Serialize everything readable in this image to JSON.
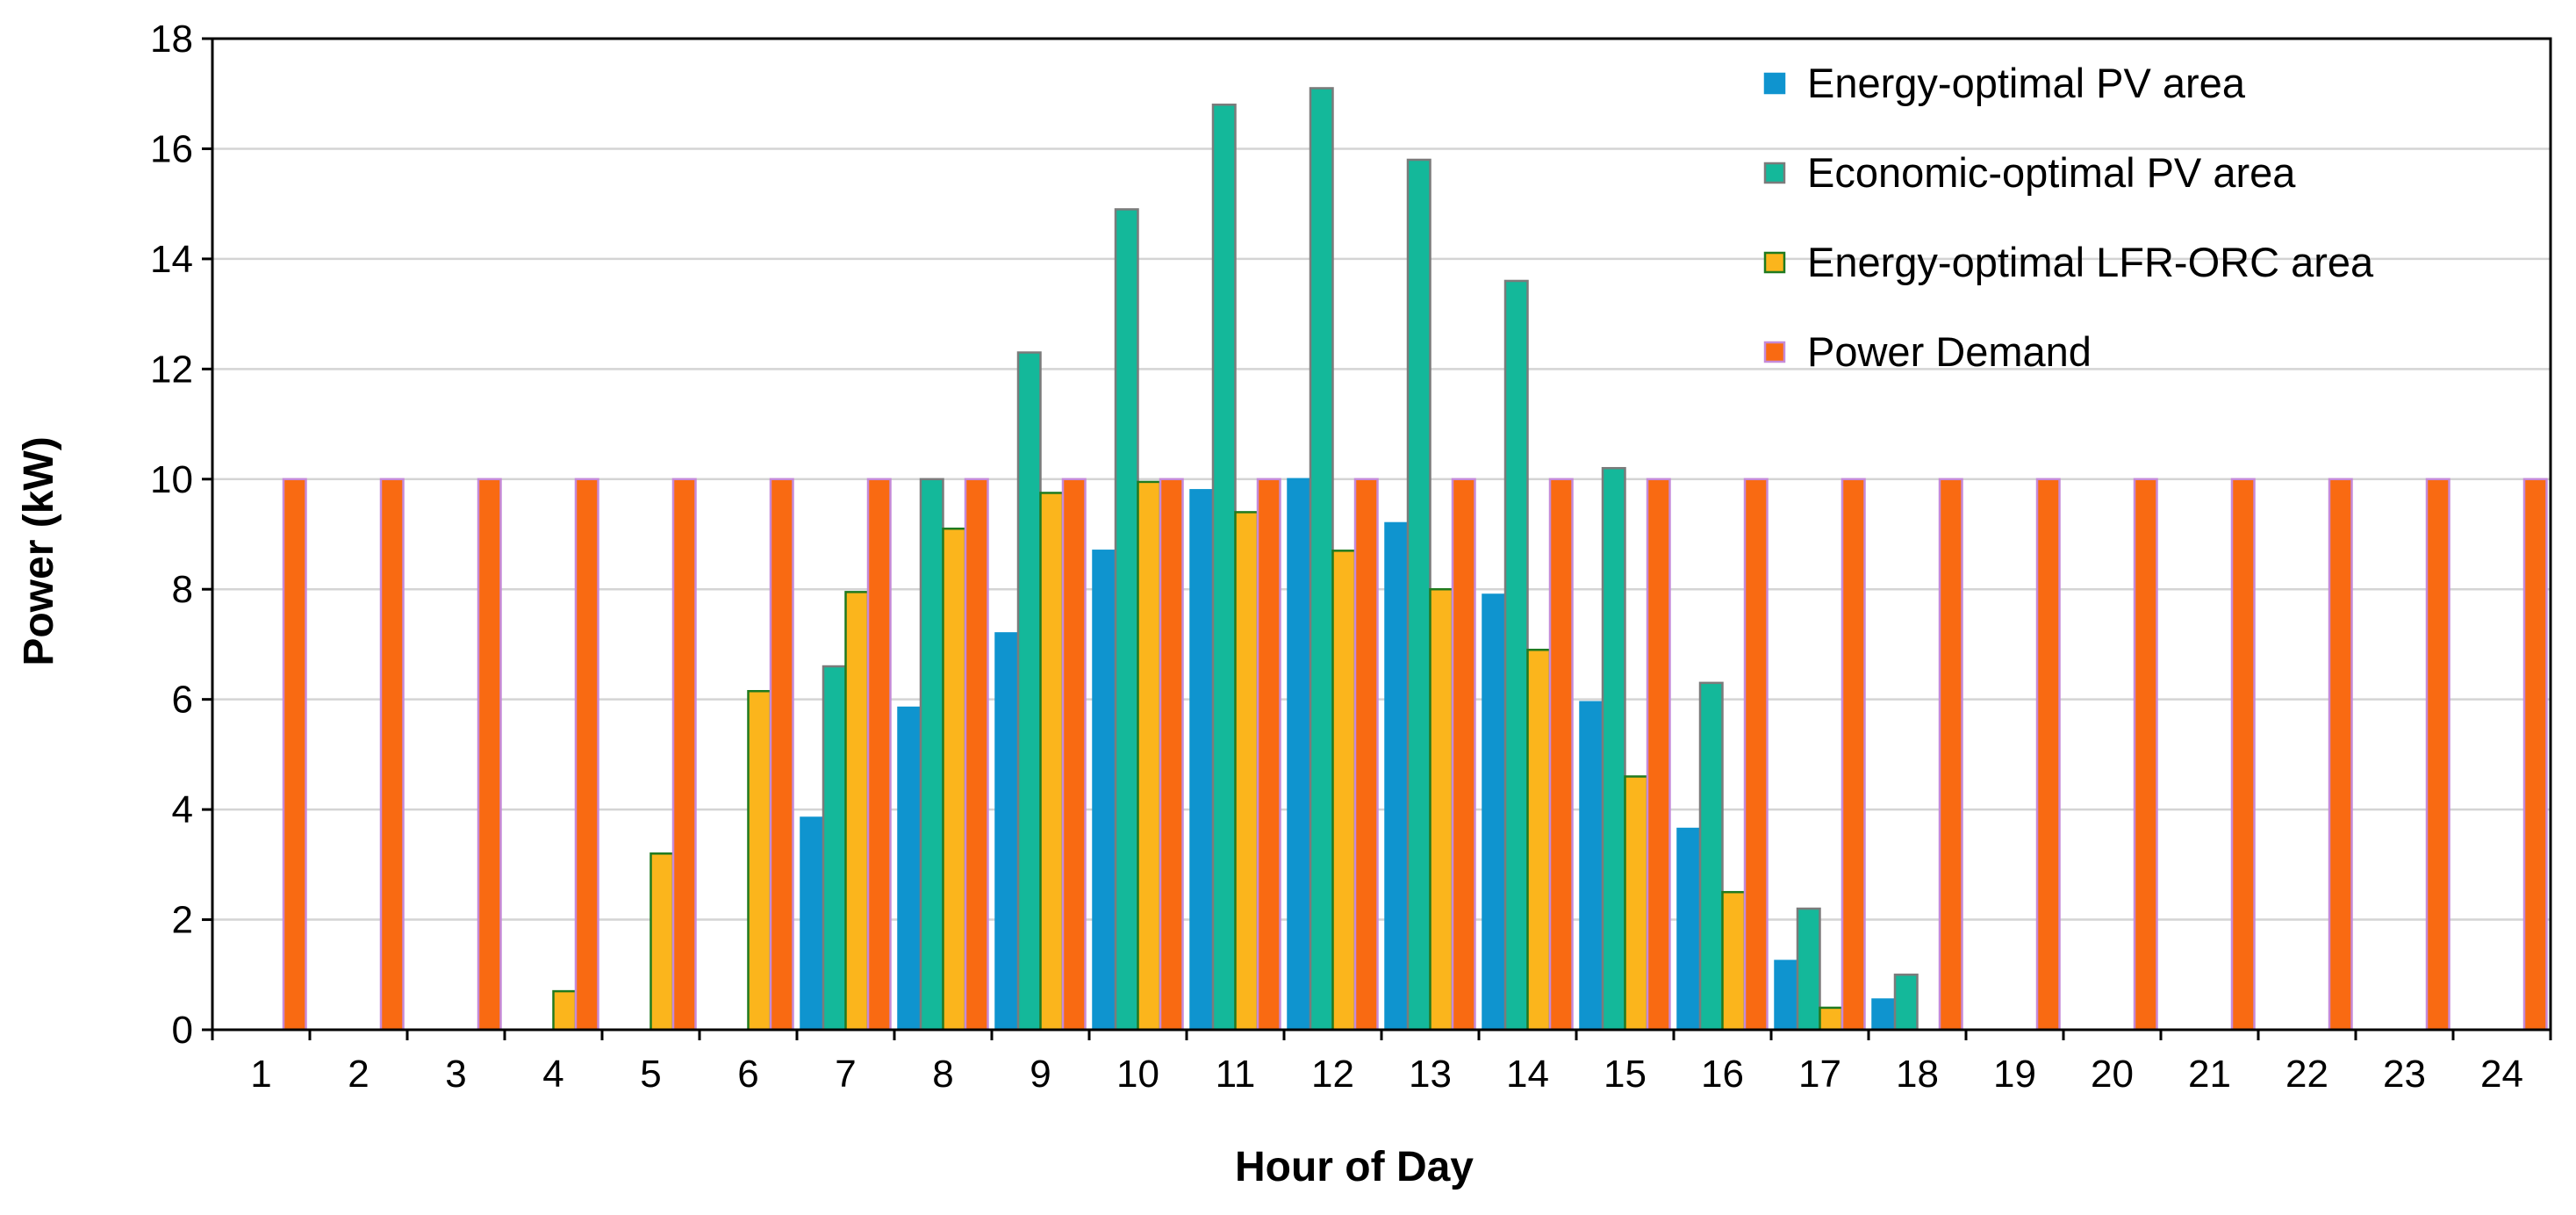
{
  "chart_data": {
    "type": "bar",
    "xlabel": "Hour of Day",
    "ylabel": "Power (kW)",
    "ylim": [
      0,
      18
    ],
    "yticks": [
      0,
      2,
      4,
      6,
      8,
      10,
      12,
      14,
      16,
      18
    ],
    "grid": "horizontal",
    "legend_position": "top-right",
    "categories": [
      "1",
      "2",
      "3",
      "4",
      "5",
      "6",
      "7",
      "8",
      "9",
      "10",
      "11",
      "12",
      "13",
      "14",
      "15",
      "16",
      "17",
      "18",
      "19",
      "20",
      "21",
      "22",
      "23",
      "24"
    ],
    "series": [
      {
        "name": "Energy-optimal PV area",
        "fill": "#0f94cf",
        "stroke": "#0f94cf",
        "values": [
          0,
          0,
          0,
          0,
          0,
          0,
          3.85,
          5.85,
          7.2,
          8.7,
          9.8,
          10.0,
          9.2,
          7.9,
          5.95,
          3.65,
          1.25,
          0.55,
          0,
          0,
          0,
          0,
          0,
          0
        ]
      },
      {
        "name": "Economic-optimal PV area",
        "fill": "#14b89a",
        "stroke": "#7b7b7b",
        "values": [
          0,
          0,
          0,
          0,
          0,
          0,
          6.6,
          10.0,
          12.3,
          14.9,
          16.8,
          17.1,
          15.8,
          13.6,
          10.2,
          6.3,
          2.2,
          1.0,
          0,
          0,
          0,
          0,
          0,
          0
        ]
      },
      {
        "name": "Energy-optimal LFR-ORC area",
        "fill": "#fbb51c",
        "stroke": "#1f7a1f",
        "values": [
          0,
          0,
          0,
          0.7,
          3.2,
          6.15,
          7.95,
          9.1,
          9.75,
          9.95,
          9.4,
          8.7,
          8.0,
          6.9,
          4.6,
          2.5,
          0.4,
          0,
          0,
          0,
          0,
          0,
          0,
          0
        ]
      },
      {
        "name": "Power Demand",
        "fill": "#f96a12",
        "stroke": "#c58ad8",
        "values": [
          10,
          10,
          10,
          10,
          10,
          10,
          10,
          10,
          10,
          10,
          10,
          10,
          10,
          10,
          10,
          10,
          10,
          10,
          10,
          10,
          10,
          10,
          10,
          10
        ]
      }
    ]
  }
}
